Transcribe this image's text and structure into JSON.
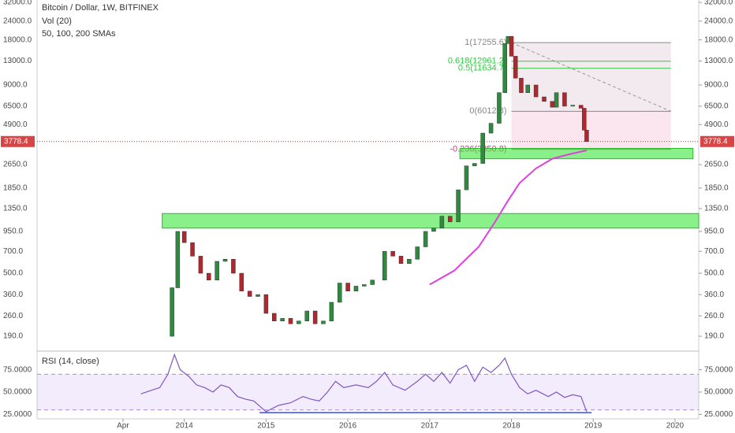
{
  "chart_data": {
    "type": "candlestick",
    "title": "Bitcoin / Dollar, 1W, BITFINEX",
    "indicators": [
      "Vol (20)",
      "50, 100, 200 SMAs"
    ],
    "log_scale": true,
    "xlim": [
      2012.2,
      2020.29
    ],
    "xticks": [
      {
        "value": 2013.25,
        "label": "Apr"
      },
      {
        "value": 2014,
        "label": "2014"
      },
      {
        "value": 2015,
        "label": "2015"
      },
      {
        "value": 2016,
        "label": "2016"
      },
      {
        "value": 2017,
        "label": "2017"
      },
      {
        "value": 2018,
        "label": "2018"
      },
      {
        "value": 2019,
        "label": "2019"
      },
      {
        "value": 2020,
        "label": "2020"
      }
    ],
    "ylim": [
      153,
      33200
    ],
    "yticks": [
      {
        "value": 190,
        "label": "190.0"
      },
      {
        "value": 260,
        "label": "260.0"
      },
      {
        "value": 360,
        "label": "360.0"
      },
      {
        "value": 500,
        "label": "500.0"
      },
      {
        "value": 700,
        "label": "700.0"
      },
      {
        "value": 950,
        "label": "950.0"
      },
      {
        "value": 1350,
        "label": "1350.0"
      },
      {
        "value": 1850,
        "label": "1850.0"
      },
      {
        "value": 2650,
        "label": "2650.0"
      },
      {
        "value": 4900,
        "label": "4900.0"
      },
      {
        "value": 6500,
        "label": "6500.0"
      },
      {
        "value": 9000,
        "label": "9000.0"
      },
      {
        "value": 13000,
        "label": "13000.0"
      },
      {
        "value": 18000,
        "label": "18000.0"
      },
      {
        "value": 24000,
        "label": "24000.0"
      },
      {
        "value": 32000,
        "label": "32000.0"
      }
    ],
    "up_color": "#2e8b3e",
    "down_color": "#b0282e",
    "x": [
      2013.75,
      2013.85,
      2013.92,
      2014.0,
      2014.1,
      2014.2,
      2014.3,
      2014.4,
      2014.5,
      2014.6,
      2014.7,
      2014.8,
      2014.9,
      2015.0,
      2015.1,
      2015.2,
      2015.3,
      2015.4,
      2015.5,
      2015.6,
      2015.7,
      2015.8,
      2015.9,
      2016.0,
      2016.1,
      2016.2,
      2016.3,
      2016.45,
      2016.55,
      2016.65,
      2016.75,
      2016.85,
      2016.95,
      2017.05,
      2017.15,
      2017.25,
      2017.35,
      2017.45,
      2017.55,
      2017.65,
      2017.75,
      2017.85,
      2017.92,
      2017.96,
      2018.0,
      2018.05,
      2018.12,
      2018.2,
      2018.3,
      2018.4,
      2018.5,
      2018.55,
      2018.65,
      2018.75,
      2018.85,
      2018.89,
      2018.92
    ],
    "values": [
      190,
      400,
      950,
      800,
      650,
      500,
      450,
      600,
      620,
      500,
      380,
      350,
      360,
      270,
      240,
      250,
      230,
      240,
      280,
      230,
      240,
      320,
      430,
      380,
      410,
      420,
      450,
      700,
      650,
      580,
      620,
      750,
      950,
      1000,
      1200,
      1100,
      1800,
      2600,
      2700,
      4300,
      5000,
      8000,
      17000,
      19000,
      14000,
      10000,
      8000,
      9000,
      7500,
      7000,
      6400,
      8000,
      6500,
      6600,
      6300,
      4500,
      3778.4
    ],
    "sma": {
      "color": "#e040e0",
      "x": [
        2017.0,
        2017.3,
        2017.6,
        2017.8,
        2017.95,
        2018.1,
        2018.3,
        2018.5,
        2018.7,
        2018.92
      ],
      "values": [
        420,
        520,
        750,
        1100,
        1500,
        2000,
        2500,
        2900,
        3100,
        3300
      ]
    },
    "last_price": 3778.4,
    "fib": {
      "x": [
        2018.0,
        2019.95
      ],
      "levels": [
        {
          "value": 17255.6,
          "label": "1(17255.6)",
          "color": "#888888"
        },
        {
          "value": 12961.2,
          "label": "0.618(12961.2)",
          "color": "#2ecc40"
        },
        {
          "value": 11634.7,
          "label": "0.5(11634.7)",
          "color": "#2ecc40"
        },
        {
          "value": 6012.8,
          "label": "0(6012.8)",
          "color": "#888888"
        },
        {
          "value": 3350.8,
          "label": "-0.236(3350.8)",
          "color": "#d63384"
        }
      ]
    },
    "zones": [
      {
        "x": [
          2013.73,
          2020.29
        ],
        "y": [
          1000,
          1250
        ]
      },
      {
        "x": [
          2017.37,
          2020.22
        ],
        "y": [
          2900,
          3400
        ]
      }
    ],
    "rsi": {
      "title": "RSI (14, close)",
      "color": "#7e57c2",
      "ylim": [
        20,
        95
      ],
      "yticks": [
        {
          "value": 25,
          "label": "25.0000"
        },
        {
          "value": 50,
          "label": "50.0000"
        },
        {
          "value": 75,
          "label": "75.0000"
        }
      ],
      "band": [
        30,
        70
      ],
      "x": [
        2013.47,
        2013.6,
        2013.7,
        2013.8,
        2013.88,
        2013.95,
        2014.05,
        2014.15,
        2014.25,
        2014.35,
        2014.45,
        2014.55,
        2014.65,
        2014.75,
        2014.85,
        2014.95,
        2015.0,
        2015.15,
        2015.3,
        2015.45,
        2015.55,
        2015.65,
        2015.75,
        2015.85,
        2015.95,
        2016.1,
        2016.25,
        2016.35,
        2016.45,
        2016.55,
        2016.7,
        2016.85,
        2016.95,
        2017.05,
        2017.15,
        2017.25,
        2017.35,
        2017.45,
        2017.55,
        2017.65,
        2017.75,
        2017.85,
        2017.92,
        2018.0,
        2018.1,
        2018.2,
        2018.3,
        2018.45,
        2018.55,
        2018.65,
        2018.75,
        2018.85,
        2018.92
      ],
      "values": [
        48,
        52,
        55,
        70,
        92,
        75,
        68,
        58,
        55,
        50,
        58,
        55,
        45,
        42,
        40,
        32,
        28,
        35,
        38,
        45,
        42,
        40,
        50,
        62,
        55,
        58,
        55,
        62,
        72,
        58,
        52,
        62,
        70,
        62,
        72,
        60,
        75,
        80,
        62,
        78,
        72,
        80,
        88,
        70,
        55,
        48,
        52,
        45,
        50,
        44,
        47,
        45,
        28
      ],
      "support": {
        "value": 27,
        "x": [
          2014.92,
          2018.98
        ]
      }
    }
  }
}
